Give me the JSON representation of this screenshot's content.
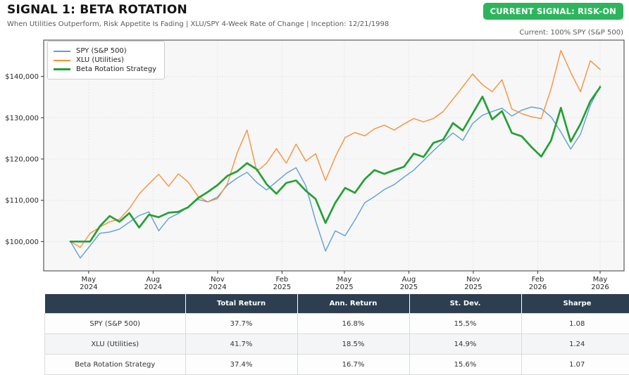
{
  "header": {
    "title": "SIGNAL 1: BETA ROTATION",
    "subtitle": "When Utilities Outperform, Risk Appetite Is Fading | XLU/SPY 4-Week Rate of Change | Inception: 12/21/1998",
    "signal_badge": "CURRENT SIGNAL: RISK-ON",
    "badge_color": "#2db55d",
    "current_allocation": "Current: 100% SPY (S&P 500)"
  },
  "chart_data": {
    "type": "line",
    "title": "",
    "xlabel": "",
    "ylabel": "",
    "grid": true,
    "legend_position": "upper left",
    "ylim": [
      92900,
      148800
    ],
    "y_ticks": [
      {
        "value": 100000,
        "label": "$100,000"
      },
      {
        "value": 110000,
        "label": "$110,000"
      },
      {
        "value": 120000,
        "label": "$120,000"
      },
      {
        "value": 130000,
        "label": "$130,000"
      },
      {
        "value": 140000,
        "label": "$140,000"
      }
    ],
    "x_span_days": 756,
    "x_ticks": [
      {
        "month": "May",
        "year": "2024",
        "day": 26
      },
      {
        "month": "Aug",
        "year": "2024",
        "day": 118
      },
      {
        "month": "Nov",
        "year": "2024",
        "day": 210
      },
      {
        "month": "Feb",
        "year": "2025",
        "day": 302
      },
      {
        "month": "May",
        "year": "2025",
        "day": 391
      },
      {
        "month": "Aug",
        "year": "2025",
        "day": 483
      },
      {
        "month": "Nov",
        "year": "2025",
        "day": 575
      },
      {
        "month": "Feb",
        "year": "2026",
        "day": 667
      },
      {
        "month": "May",
        "year": "2026",
        "day": 756
      }
    ],
    "dates": [
      "2024-04-05",
      "2024-04-19",
      "2024-05-03",
      "2024-05-17",
      "2024-05-31",
      "2024-06-14",
      "2024-06-28",
      "2024-07-12",
      "2024-07-26",
      "2024-08-09",
      "2024-08-23",
      "2024-09-06",
      "2024-09-20",
      "2024-10-04",
      "2024-10-18",
      "2024-11-01",
      "2024-11-15",
      "2024-11-29",
      "2024-12-13",
      "2024-12-27",
      "2025-01-10",
      "2025-01-24",
      "2025-02-07",
      "2025-02-21",
      "2025-03-07",
      "2025-03-21",
      "2025-04-04",
      "2025-04-18",
      "2025-05-02",
      "2025-05-16",
      "2025-05-30",
      "2025-06-13",
      "2025-06-27",
      "2025-07-11",
      "2025-07-25",
      "2025-08-08",
      "2025-08-22",
      "2025-09-05",
      "2025-09-19",
      "2025-10-03",
      "2025-10-17",
      "2025-10-31",
      "2025-11-14",
      "2025-11-28",
      "2025-12-12",
      "2025-12-26",
      "2026-01-09",
      "2026-01-23",
      "2026-02-06",
      "2026-02-20",
      "2026-03-06",
      "2026-03-20",
      "2026-04-03",
      "2026-04-17",
      "2026-05-01"
    ],
    "series": [
      {
        "name": "SPY (S&P 500)",
        "color": "#5c9fd6",
        "width": 1.4,
        "values": [
          100000,
          96000,
          99000,
          102000,
          102300,
          103000,
          104700,
          106300,
          107200,
          102600,
          105600,
          106800,
          108400,
          110200,
          109600,
          110800,
          113700,
          115400,
          116800,
          114300,
          112500,
          114500,
          116500,
          117900,
          113500,
          105000,
          97700,
          102600,
          101400,
          105200,
          109400,
          110900,
          112600,
          113800,
          115600,
          117300,
          119600,
          122000,
          124200,
          126300,
          124500,
          128600,
          130600,
          131500,
          132300,
          130400,
          131800,
          132600,
          132200,
          130200,
          126500,
          122400,
          126000,
          133000,
          137700
        ]
      },
      {
        "name": "XLU (Utilities)",
        "color": "#f5923e",
        "width": 1.4,
        "values": [
          100000,
          98600,
          102000,
          103500,
          104800,
          105400,
          108000,
          111500,
          114000,
          116300,
          113400,
          116400,
          114400,
          111000,
          109600,
          110400,
          114000,
          121500,
          127000,
          117000,
          119000,
          122500,
          119000,
          123600,
          119500,
          121300,
          114800,
          120500,
          125200,
          126400,
          125600,
          127300,
          128200,
          127000,
          128500,
          129800,
          129000,
          129800,
          131500,
          134500,
          137500,
          140600,
          138000,
          136300,
          139200,
          132100,
          131000,
          130200,
          129800,
          137000,
          146300,
          141000,
          136300,
          143800,
          141700
        ]
      },
      {
        "name": "Beta Rotation Strategy",
        "color": "#23a036",
        "width": 2.7,
        "values": [
          100000,
          100000,
          100000,
          103700,
          106200,
          104800,
          106900,
          103400,
          106500,
          105900,
          107000,
          107200,
          108300,
          110500,
          112000,
          113700,
          115900,
          117000,
          119000,
          117500,
          113900,
          111600,
          114200,
          114800,
          112300,
          110300,
          104500,
          109400,
          113000,
          111800,
          115100,
          117300,
          116400,
          117300,
          118100,
          121300,
          120500,
          123900,
          124700,
          128700,
          126900,
          131000,
          135100,
          129600,
          131600,
          126300,
          125500,
          122900,
          120600,
          124500,
          132400,
          124200,
          128500,
          134000,
          137400
        ]
      }
    ]
  },
  "table": {
    "header_bg": "#2c3e50",
    "headers": [
      "",
      "Total Return",
      "Ann. Return",
      "St. Dev.",
      "Sharpe"
    ],
    "rows": [
      {
        "name": "SPY (S&P 500)",
        "cells": [
          "37.7%",
          "16.8%",
          "15.5%",
          "1.08"
        ]
      },
      {
        "name": "XLU (Utilities)",
        "cells": [
          "41.7%",
          "18.5%",
          "14.9%",
          "1.24"
        ]
      },
      {
        "name": "Beta Rotation Strategy",
        "cells": [
          "37.4%",
          "16.7%",
          "15.6%",
          "1.07"
        ]
      }
    ]
  }
}
